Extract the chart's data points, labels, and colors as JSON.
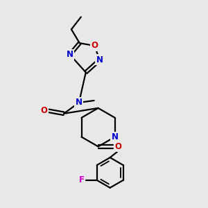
{
  "bg_color": "#e8e8e8",
  "bond_color": "#000000",
  "N_color": "#0000cc",
  "O_color": "#cc0000",
  "F_color": "#cc00cc",
  "line_width": 1.6,
  "font_size_atom": 8.5,
  "figsize": [
    3.0,
    3.0
  ],
  "dpi": 100,
  "xlim": [
    0,
    300
  ],
  "ylim": [
    0,
    300
  ]
}
